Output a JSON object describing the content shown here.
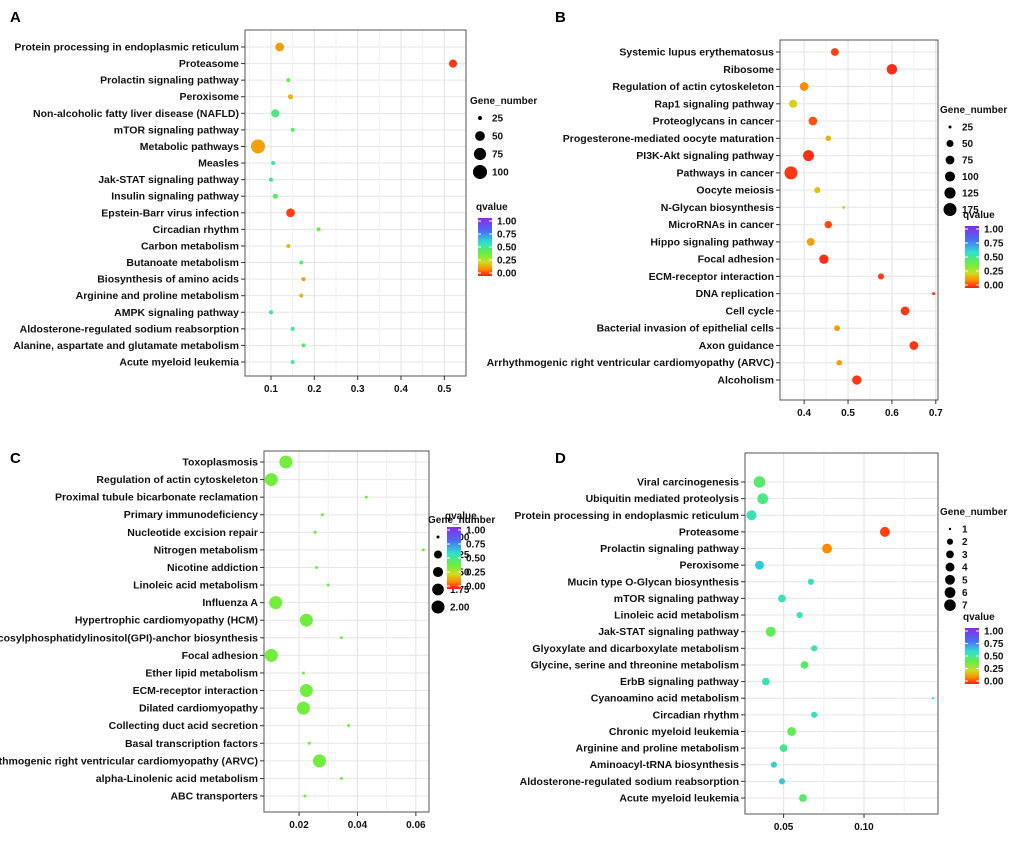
{
  "chart_data": [
    {
      "panel": "A",
      "type": "scatter",
      "xlabel": "",
      "ylabel": "",
      "xlim": [
        0.04,
        0.55
      ],
      "xticks": [
        0.1,
        0.2,
        0.3,
        0.4,
        0.5
      ],
      "xtick_labels": [
        "0.1",
        "0.2",
        "0.3",
        "0.4",
        "0.5"
      ],
      "grid": true,
      "size_legend": {
        "title": "Gene_number",
        "values": [
          25,
          50,
          75,
          100
        ],
        "labels": [
          "25",
          "50",
          "75",
          "100"
        ]
      },
      "color_legend": {
        "title": "qvalue",
        "ticks": [
          "1.00",
          "0.75",
          "0.50",
          "0.25",
          "0.00"
        ]
      },
      "points": [
        {
          "term": "Protein processing in  endoplasmic reticulum",
          "x": 0.12,
          "gene_number": 42,
          "qvalue": 0.15
        },
        {
          "term": "Proteasome",
          "x": 0.52,
          "gene_number": 38,
          "qvalue": 0.03
        },
        {
          "term": "Prolactin signaling pathway",
          "x": 0.14,
          "gene_number": 18,
          "qvalue": 0.42
        },
        {
          "term": "Peroxisome",
          "x": 0.145,
          "gene_number": 26,
          "qvalue": 0.18
        },
        {
          "term": "Non-alcoholic fatty liver disease (NAFLD)",
          "x": 0.11,
          "gene_number": 38,
          "qvalue": 0.48
        },
        {
          "term": "mTOR signaling pathway",
          "x": 0.15,
          "gene_number": 22,
          "qvalue": 0.45
        },
        {
          "term": "Metabolic pathways",
          "x": 0.07,
          "gene_number": 100,
          "qvalue": 0.15
        },
        {
          "term": "Measles",
          "x": 0.105,
          "gene_number": 24,
          "qvalue": 0.55
        },
        {
          "term": "Jak-STAT signaling pathway",
          "x": 0.1,
          "gene_number": 24,
          "qvalue": 0.55
        },
        {
          "term": "Insulin signaling pathway",
          "x": 0.11,
          "gene_number": 26,
          "qvalue": 0.45
        },
        {
          "term": "Epstein-Barr virus infection",
          "x": 0.145,
          "gene_number": 42,
          "qvalue": 0.04
        },
        {
          "term": "Circadian rhythm",
          "x": 0.21,
          "gene_number": 9,
          "qvalue": 0.4
        },
        {
          "term": "Carbon metabolism",
          "x": 0.14,
          "gene_number": 24,
          "qvalue": 0.18
        },
        {
          "term": "Butanoate metabolism",
          "x": 0.17,
          "gene_number": 5,
          "qvalue": 0.45
        },
        {
          "term": "Biosynthesis of amino acids",
          "x": 0.175,
          "gene_number": 24,
          "qvalue": 0.15
        },
        {
          "term": "Arginine and proline metabolism",
          "x": 0.17,
          "gene_number": 18,
          "qvalue": 0.18
        },
        {
          "term": "AMPK signaling pathway",
          "x": 0.1,
          "gene_number": 22,
          "qvalue": 0.55
        },
        {
          "term": "Aldosterone-regulated sodium reabsorption",
          "x": 0.15,
          "gene_number": 12,
          "qvalue": 0.52
        },
        {
          "term": "Alanine, aspartate and glutamate metabolism",
          "x": 0.175,
          "gene_number": 12,
          "qvalue": 0.45
        },
        {
          "term": "Acute myeloid leukemia",
          "x": 0.15,
          "gene_number": 14,
          "qvalue": 0.5
        }
      ]
    },
    {
      "panel": "B",
      "type": "scatter",
      "xlabel": "",
      "ylabel": "",
      "xlim": [
        0.345,
        0.705
      ],
      "xticks": [
        0.4,
        0.5,
        0.6,
        0.7
      ],
      "xtick_labels": [
        "0.4",
        "0.5",
        "0.6",
        "0.7"
      ],
      "grid": true,
      "size_legend": {
        "title": "Gene_number",
        "values": [
          25,
          50,
          75,
          100,
          125,
          175
        ],
        "labels": [
          "25",
          "50",
          "75",
          "100",
          "125",
          "175"
        ]
      },
      "color_legend": {
        "title": "qvalue",
        "ticks": [
          "1.00",
          "0.75",
          "0.50",
          "0.25",
          "0.00"
        ]
      },
      "points": [
        {
          "term": "Systemic lupus erythematosus",
          "x": 0.47,
          "gene_number": 60,
          "qvalue": 0.04
        },
        {
          "term": "Ribosome",
          "x": 0.6,
          "gene_number": 110,
          "qvalue": 0.02
        },
        {
          "term": "Regulation of actin cytoskeleton",
          "x": 0.4,
          "gene_number": 75,
          "qvalue": 0.12
        },
        {
          "term": "Rap1 signaling pathway",
          "x": 0.375,
          "gene_number": 65,
          "qvalue": 0.22
        },
        {
          "term": "Proteoglycans in cancer",
          "x": 0.42,
          "gene_number": 75,
          "qvalue": 0.06
        },
        {
          "term": "Progesterone-mediated oocyte maturation",
          "x": 0.455,
          "gene_number": 35,
          "qvalue": 0.18
        },
        {
          "term": "PI3K-Akt signaling pathway",
          "x": 0.41,
          "gene_number": 120,
          "qvalue": 0.02
        },
        {
          "term": "Pathways in cancer",
          "x": 0.37,
          "gene_number": 175,
          "qvalue": 0.03
        },
        {
          "term": "Oocyte meiosis",
          "x": 0.43,
          "gene_number": 40,
          "qvalue": 0.2
        },
        {
          "term": "N-Glycan biosynthesis",
          "x": 0.49,
          "gene_number": 18,
          "qvalue": 0.3
        },
        {
          "term": "MicroRNAs in cancer",
          "x": 0.455,
          "gene_number": 55,
          "qvalue": 0.05
        },
        {
          "term": "Hippo signaling pathway",
          "x": 0.415,
          "gene_number": 60,
          "qvalue": 0.15
        },
        {
          "term": "Focal adhesion",
          "x": 0.445,
          "gene_number": 85,
          "qvalue": 0.02
        },
        {
          "term": "ECM-receptor interaction",
          "x": 0.575,
          "gene_number": 40,
          "qvalue": 0.04
        },
        {
          "term": "DNA replication",
          "x": 0.695,
          "gene_number": 15,
          "qvalue": 0.03
        },
        {
          "term": "Cell cycle",
          "x": 0.63,
          "gene_number": 75,
          "qvalue": 0.03
        },
        {
          "term": "Bacterial invasion of epithelial cells",
          "x": 0.475,
          "gene_number": 38,
          "qvalue": 0.15
        },
        {
          "term": "Axon guidance",
          "x": 0.65,
          "gene_number": 75,
          "qvalue": 0.03
        },
        {
          "term": "Arrhythmogenic right ventricular cardiomyopathy (ARVC)",
          "x": 0.48,
          "gene_number": 35,
          "qvalue": 0.15
        },
        {
          "term": "Alcoholism",
          "x": 0.52,
          "gene_number": 85,
          "qvalue": 0.03
        }
      ]
    },
    {
      "panel": "C",
      "type": "scatter",
      "xlabel": "",
      "ylabel": "",
      "xlim": [
        0.008,
        0.0645
      ],
      "xticks": [
        0.02,
        0.04,
        0.06
      ],
      "xtick_labels": [
        "0.02",
        "0.04",
        "0.06"
      ],
      "grid": true,
      "size_legend": {
        "title": "Gene_number",
        "values": [
          1.0,
          1.25,
          1.5,
          1.75,
          2.0
        ],
        "labels": [
          "1.00",
          "1.25",
          "1.50",
          "1.75",
          "2.00"
        ]
      },
      "color_legend": {
        "title": "qvalue",
        "ticks": [
          "1.00",
          "0.75",
          "0.50",
          "0.25",
          "0.00"
        ]
      },
      "points": [
        {
          "term": "Toxoplasmosis",
          "x": 0.0155,
          "gene_number": 2,
          "qvalue": 0.38
        },
        {
          "term": "Regulation of actin cytoskeleton",
          "x": 0.0105,
          "gene_number": 2,
          "qvalue": 0.38
        },
        {
          "term": "Proximal tubule bicarbonate reclamation",
          "x": 0.043,
          "gene_number": 1,
          "qvalue": 0.38
        },
        {
          "term": "Primary immunodeficiency",
          "x": 0.028,
          "gene_number": 1,
          "qvalue": 0.38
        },
        {
          "term": "Nucleotide excision repair",
          "x": 0.0255,
          "gene_number": 1,
          "qvalue": 0.38
        },
        {
          "term": "Nitrogen metabolism",
          "x": 0.0625,
          "gene_number": 1,
          "qvalue": 0.38
        },
        {
          "term": "Nicotine addiction",
          "x": 0.026,
          "gene_number": 1,
          "qvalue": 0.38
        },
        {
          "term": "Linoleic acid metabolism",
          "x": 0.03,
          "gene_number": 1,
          "qvalue": 0.38
        },
        {
          "term": "Influenza A",
          "x": 0.012,
          "gene_number": 2,
          "qvalue": 0.38
        },
        {
          "term": "Hypertrophic cardiomyopathy (HCM)",
          "x": 0.0225,
          "gene_number": 2,
          "qvalue": 0.38
        },
        {
          "term": "Glycosylphosphatidylinositol(GPI)-anchor biosynthesis",
          "x": 0.0345,
          "gene_number": 1,
          "qvalue": 0.38
        },
        {
          "term": "Focal adhesion",
          "x": 0.0105,
          "gene_number": 2,
          "qvalue": 0.38
        },
        {
          "term": "Ether lipid metabolism",
          "x": 0.0215,
          "gene_number": 1,
          "qvalue": 0.38
        },
        {
          "term": "ECM-receptor interaction",
          "x": 0.0225,
          "gene_number": 2,
          "qvalue": 0.38
        },
        {
          "term": "Dilated cardiomyopathy",
          "x": 0.0215,
          "gene_number": 2,
          "qvalue": 0.38
        },
        {
          "term": "Collecting duct acid secretion",
          "x": 0.037,
          "gene_number": 1,
          "qvalue": 0.38
        },
        {
          "term": "Basal transcription factors",
          "x": 0.0235,
          "gene_number": 1,
          "qvalue": 0.38
        },
        {
          "term": "Arrhythmogenic right ventricular cardiomyopathy (ARVC)",
          "x": 0.027,
          "gene_number": 2,
          "qvalue": 0.38
        },
        {
          "term": "alpha-Linolenic acid metabolism",
          "x": 0.0345,
          "gene_number": 1,
          "qvalue": 0.38
        },
        {
          "term": "ABC transporters",
          "x": 0.022,
          "gene_number": 1,
          "qvalue": 0.38
        }
      ]
    },
    {
      "panel": "D",
      "type": "scatter",
      "xlabel": "",
      "ylabel": "",
      "xlim": [
        0.026,
        0.146
      ],
      "xticks": [
        0.05,
        0.1
      ],
      "xtick_labels": [
        "0.05",
        "0.10"
      ],
      "grid": true,
      "size_legend": {
        "title": "Gene_number",
        "values": [
          1,
          2,
          3,
          4,
          5,
          6,
          7
        ],
        "labels": [
          "1",
          "2",
          "3",
          "4",
          "5",
          "6",
          "7"
        ]
      },
      "color_legend": {
        "title": "qvalue",
        "ticks": [
          "1.00",
          "0.75",
          "0.50",
          "0.25",
          "0.00"
        ]
      },
      "points": [
        {
          "term": "Viral carcinogenesis",
          "x": 0.035,
          "gene_number": 7,
          "qvalue": 0.45
        },
        {
          "term": "Ubiquitin mediated proteolysis",
          "x": 0.037,
          "gene_number": 6,
          "qvalue": 0.48
        },
        {
          "term": "Protein processing in endoplasmic reticulum",
          "x": 0.03,
          "gene_number": 5,
          "qvalue": 0.55
        },
        {
          "term": "Proteasome",
          "x": 0.113,
          "gene_number": 5,
          "qvalue": 0.04
        },
        {
          "term": "Prolactin signaling pathway",
          "x": 0.077,
          "gene_number": 5,
          "qvalue": 0.12
        },
        {
          "term": "Peroxisome",
          "x": 0.035,
          "gene_number": 4,
          "qvalue": 0.62
        },
        {
          "term": "Mucin type O-Glycan biosynthesis",
          "x": 0.067,
          "gene_number": 2,
          "qvalue": 0.55
        },
        {
          "term": "mTOR signaling pathway",
          "x": 0.049,
          "gene_number": 3,
          "qvalue": 0.55
        },
        {
          "term": "Linoleic acid metabolism",
          "x": 0.06,
          "gene_number": 2,
          "qvalue": 0.55
        },
        {
          "term": "Jak-STAT signaling pathway",
          "x": 0.042,
          "gene_number": 5,
          "qvalue": 0.42
        },
        {
          "term": "Glyoxylate and dicarboxylate metabolism",
          "x": 0.069,
          "gene_number": 2,
          "qvalue": 0.55
        },
        {
          "term": "Glycine, serine and threonine metabolism",
          "x": 0.063,
          "gene_number": 3,
          "qvalue": 0.45
        },
        {
          "term": "ErbB signaling pathway",
          "x": 0.039,
          "gene_number": 3,
          "qvalue": 0.55
        },
        {
          "term": "Cyanoamino acid metabolism",
          "x": 0.143,
          "gene_number": 1,
          "qvalue": 0.55
        },
        {
          "term": "Circadian rhythm",
          "x": 0.069,
          "gene_number": 2,
          "qvalue": 0.55
        },
        {
          "term": "Chronic myeloid leukemia",
          "x": 0.055,
          "gene_number": 4,
          "qvalue": 0.42
        },
        {
          "term": "Arginine and proline metabolism",
          "x": 0.05,
          "gene_number": 3,
          "qvalue": 0.5
        },
        {
          "term": "Aminoacyl-tRNA biosynthesis",
          "x": 0.044,
          "gene_number": 2,
          "qvalue": 0.6
        },
        {
          "term": "Aldosterone-regulated sodium reabsorption",
          "x": 0.049,
          "gene_number": 2,
          "qvalue": 0.62
        },
        {
          "term": "Acute myeloid leukemia",
          "x": 0.062,
          "gene_number": 3,
          "qvalue": 0.45
        }
      ]
    }
  ]
}
